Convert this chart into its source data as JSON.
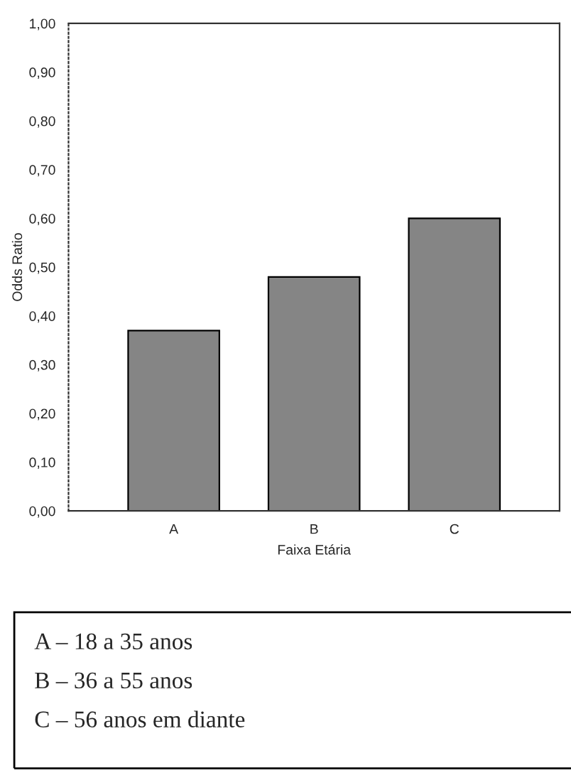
{
  "chart_data": {
    "type": "bar",
    "xlabel": "Faixa Etária",
    "ylabel": "Odds Ratio",
    "categories": [
      "A",
      "B",
      "C"
    ],
    "values": [
      0.37,
      0.48,
      0.6
    ],
    "color": "#858585",
    "ylim": [
      0,
      1
    ],
    "yticks": [
      {
        "value": 0,
        "label": "0,00"
      },
      {
        "value": 0.1,
        "label": "0,10"
      },
      {
        "value": 0.2,
        "label": "0,20"
      },
      {
        "value": 0.3,
        "label": "0,30"
      },
      {
        "value": 0.4,
        "label": "0,40"
      },
      {
        "value": 0.5,
        "label": "0,50"
      },
      {
        "value": 0.6,
        "label": "0,60"
      },
      {
        "value": 0.7,
        "label": "0,70"
      },
      {
        "value": 0.8,
        "label": "0,80"
      },
      {
        "value": 0.9,
        "label": "0,90"
      },
      {
        "value": 1,
        "label": "1,00"
      }
    ],
    "grid": false,
    "annotations": [
      "A – 18 a 35 anos",
      "B – 36 a 55 anos",
      "C – 56 anos em diante"
    ]
  }
}
